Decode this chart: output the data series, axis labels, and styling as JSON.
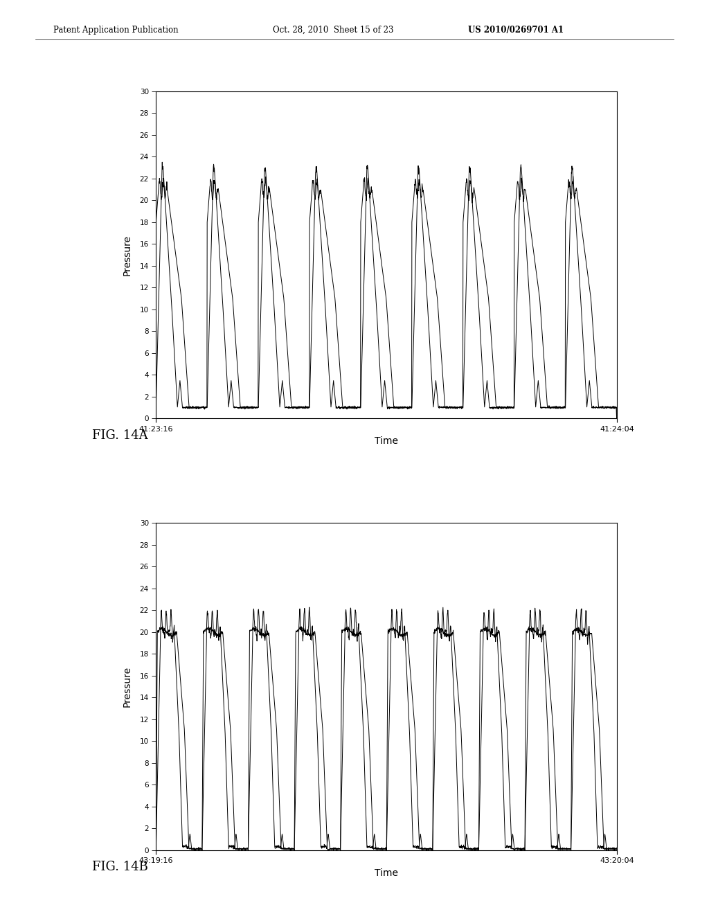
{
  "header_left": "Patent Application Publication",
  "header_mid": "Oct. 28, 2010  Sheet 15 of 23",
  "header_right": "US 2010/0269701 A1",
  "fig_a_label": "FIG. 14A",
  "fig_b_label": "FIG. 14B",
  "ylabel": "Pressure",
  "xlabel": "Time",
  "fig_a_xmin_label": "41:23:16",
  "fig_a_xmax_label": "41:24:04",
  "fig_b_xmin_label": "43:19:16",
  "fig_b_xmax_label": "43:20:04",
  "ymin": 0,
  "ymax": 30,
  "yticks": [
    0,
    2,
    4,
    6,
    8,
    10,
    12,
    14,
    16,
    18,
    20,
    22,
    24,
    26,
    28,
    30
  ],
  "background_color": "#ffffff",
  "line_color": "#000000",
  "n_cycles_a": 9,
  "n_cycles_b": 10
}
